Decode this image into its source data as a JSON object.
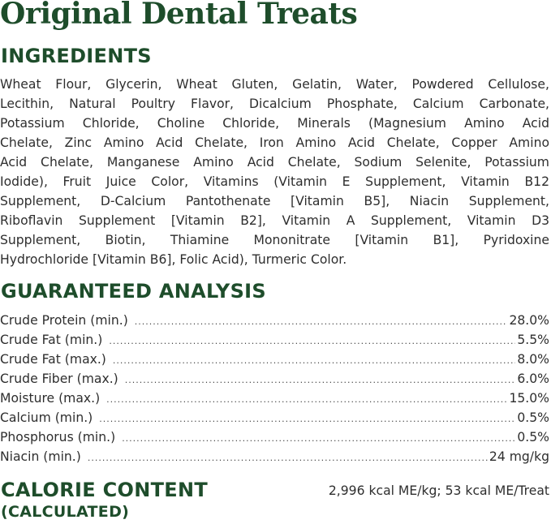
{
  "title": "Original Dental Treats",
  "ingredients": {
    "heading": "INGREDIENTS",
    "lines": [
      "Wheat Flour, Glycerin, Wheat Gluten, Gelatin, Water, Powdered Cellulose,",
      "Lecithin, Natural Poultry Flavor, Dicalcium Phosphate, Calcium Carbonate,",
      "Potassium Chloride, Choline Chloride, Minerals (Magnesium Amino Acid",
      "Chelate, Zinc Amino Acid Chelate, Iron Amino Acid Chelate, Copper Amino",
      "Acid Chelate, Manganese Amino Acid Chelate, Sodium Selenite, Potassium",
      "Iodide), Fruit Juice Color, Vitamins (Vitamin E Supplement, Vitamin B12",
      "Supplement, D-Calcium Pantothenate [Vitamin B5], Niacin Supplement,",
      "Riboflavin Supplement [Vitamin B2], Vitamin A Supplement, Vitamin D3",
      "Supplement, Biotin, Thiamine Mononitrate [Vitamin B1], Pyridoxine",
      "Hydrochloride [Vitamin B6], Folic Acid), Turmeric Color."
    ]
  },
  "analysis": {
    "heading": "GUARANTEED ANALYSIS",
    "rows": [
      {
        "label": "Crude Protein (min.)",
        "value": "28.0%"
      },
      {
        "label": "Crude Fat (min.)",
        "value": "5.5%"
      },
      {
        "label": "Crude Fat (max.)",
        "value": "8.0%"
      },
      {
        "label": "Crude Fiber (max.)",
        "value": "6.0%"
      },
      {
        "label": "Moisture (max.)",
        "value": "15.0%"
      },
      {
        "label": "Calcium (min.)",
        "value": "0.5%"
      },
      {
        "label": "Phosphorus (min.)",
        "value": "0.5%"
      },
      {
        "label": "Niacin (min.)",
        "value": "24 mg/kg"
      }
    ]
  },
  "calorie": {
    "heading": "CALORIE CONTENT",
    "subheading": "(CALCULATED)",
    "value": "2,996 kcal ME/kg; 53 kcal ME/Treat"
  },
  "colors": {
    "heading_green": "#1e4d2b",
    "text": "#2e2e2e"
  }
}
